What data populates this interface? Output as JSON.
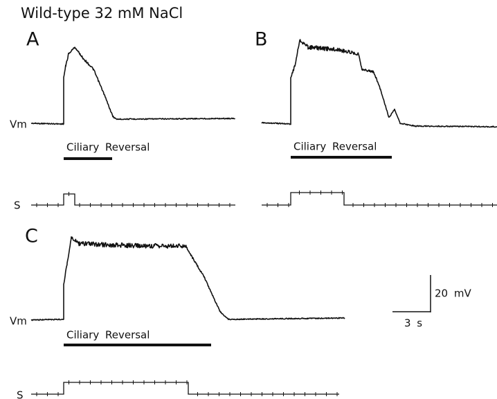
{
  "title": "Wild-type 32 mM NaCl",
  "panels": [
    {
      "label": "A",
      "vm_label": "Vm",
      "bar_label": "Ciliary Reversal",
      "s_label": "S"
    },
    {
      "label": "B",
      "bar_label": "Ciliary Reversal"
    },
    {
      "label": "C",
      "vm_label": "Vm",
      "bar_label": "Ciliary Reversal",
      "s_label": "S"
    }
  ],
  "scale_bar": {
    "voltage": "20 mV",
    "time": "3 s"
  }
}
